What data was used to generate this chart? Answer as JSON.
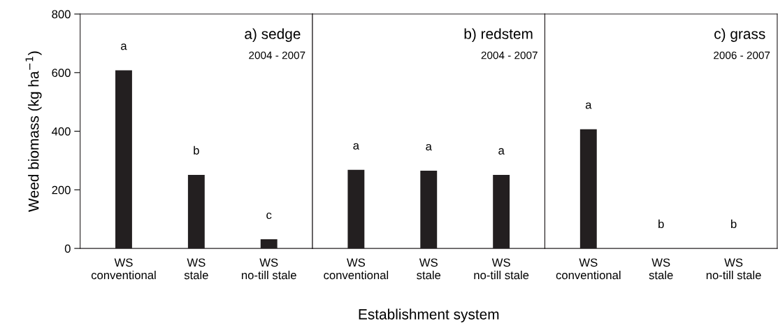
{
  "chart_data": [
    {
      "type": "bar",
      "title": "a) sedge",
      "subtitle": "2004 - 2007",
      "ylabel": "Weed biomass (kg ha$^{−1}$)",
      "categories": [
        "WS\nconventional",
        "WS\nstale",
        "WS\nno-till stale"
      ],
      "values": [
        608,
        251,
        31
      ],
      "color": "#231f20",
      "ylim": [
        0,
        800
      ],
      "yticks": [
        0,
        200,
        400,
        600,
        800
      ],
      "grid": false,
      "annotations": [
        "a",
        "b",
        "c"
      ]
    },
    {
      "type": "bar",
      "title": "b) redstem",
      "subtitle": "2004 - 2007",
      "xlabel": "Establishment system",
      "categories": [
        "WS\nconventional",
        "WS\nstale",
        "WS\nno-till stale"
      ],
      "values": [
        268,
        265,
        251
      ],
      "color": "#231f20",
      "ylim": [
        0,
        800
      ],
      "yticks": [
        0,
        200,
        400,
        600,
        800
      ],
      "tick_labels": "x",
      "grid": false,
      "annotations": [
        "a",
        "a",
        "a"
      ]
    },
    {
      "type": "bar",
      "title": "c) grass",
      "subtitle": "2006 - 2007",
      "categories": [
        "WS\nconventional",
        "WS\nstale",
        "WS\nno-till stale"
      ],
      "values": [
        407,
        0,
        0
      ],
      "color": "#231f20",
      "ylim": [
        0,
        800
      ],
      "yticks": [
        0,
        200,
        400,
        600,
        800
      ],
      "tick_labels": "x",
      "grid": false,
      "annotations": [
        "a",
        "b",
        "b"
      ]
    }
  ]
}
